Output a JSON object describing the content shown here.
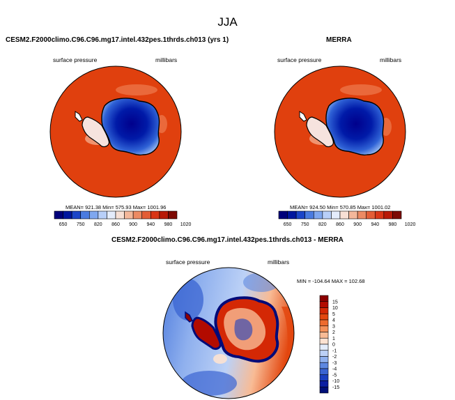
{
  "title": "JJA",
  "colors": {
    "ocean_top": "#E03C0C",
    "ice_core": "#00008C",
    "coast": "#000000"
  },
  "panels": [
    {
      "id": "model",
      "title": "CESM2.F2000climo.C96.C96.mg17.intel.432pes.1thrds.ch013 (yrs 1)",
      "left_label": "surface pressure",
      "right_label": "millibars",
      "stats": "MEAN= 921.38  Min= 575.93  Max= 1001.96"
    },
    {
      "id": "obs",
      "title": "MERRA",
      "left_label": "surface pressure",
      "right_label": "millibars",
      "stats": "MEAN= 924.50  Min= 570.85  Max= 1001.02"
    },
    {
      "id": "diff",
      "title": "CESM2.F2000climo.C96.C96.mg17.intel.432pes.1thrds.ch013 - MERRA",
      "left_label": "surface pressure",
      "right_label": "millibars",
      "stats": "MIN = -104.64  MAX = 102.68"
    }
  ],
  "chart_data": [
    {
      "type": "heatmap",
      "name": "model surface pressure",
      "units": "millibars",
      "mean": 921.38,
      "min": 575.93,
      "max": 1001.96,
      "colorbar_levels": [
        650,
        750,
        820,
        860,
        900,
        940,
        980,
        1020
      ],
      "colorbar_colors": [
        "#00007a",
        "#00169e",
        "#1b45c8",
        "#4a7be0",
        "#7fa7ef",
        "#b8cff8",
        "#e4ecfb",
        "#f7e0d5",
        "#f3b79a",
        "#ec8a63",
        "#e35d36",
        "#d93617",
        "#b81a08",
        "#7d0a04"
      ]
    },
    {
      "type": "heatmap",
      "name": "MERRA surface pressure",
      "units": "millibars",
      "mean": 924.5,
      "min": 570.85,
      "max": 1001.02,
      "colorbar_levels": [
        650,
        750,
        820,
        860,
        900,
        940,
        980,
        1020
      ],
      "colorbar_colors": [
        "#00007a",
        "#00169e",
        "#1b45c8",
        "#4a7be0",
        "#7fa7ef",
        "#b8cff8",
        "#e4ecfb",
        "#f7e0d5",
        "#f3b79a",
        "#ec8a63",
        "#e35d36",
        "#d93617",
        "#b81a08",
        "#7d0a04"
      ]
    },
    {
      "type": "heatmap",
      "name": "model minus MERRA",
      "units": "millibars",
      "min": -104.64,
      "max": 102.68,
      "colorbar_levels": [
        15,
        10,
        5,
        4,
        3,
        2,
        1,
        0,
        -1,
        -2,
        -3,
        -4,
        -5,
        -10,
        -15
      ],
      "colorbar_colors": [
        "#8c0000",
        "#b20b00",
        "#d42805",
        "#e3470f",
        "#ed6b2e",
        "#f4915a",
        "#f8bb95",
        "#fce2d2",
        "#e3ecfb",
        "#bcd1f6",
        "#8fb0ee",
        "#5e88e1",
        "#3a64d2",
        "#1a3fc0",
        "#0b1ea2",
        "#000f78"
      ]
    }
  ]
}
